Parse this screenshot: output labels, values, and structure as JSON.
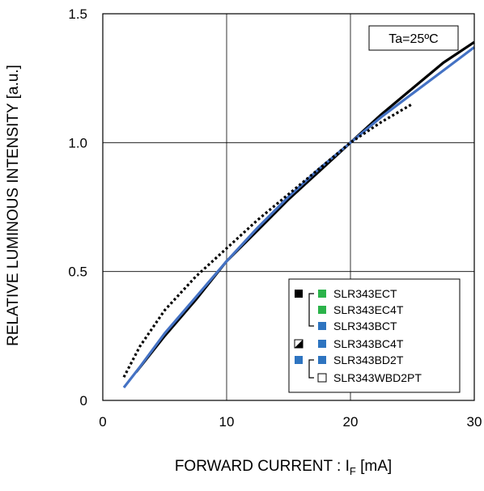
{
  "chart_data": {
    "type": "line",
    "xlabel": "FORWARD CURRENT : I",
    "xlabel_subscript": "F",
    "xlabel_unit": " [mA]",
    "ylabel": "RELATIVE LUMINOUS INTENSITY [a.u.]",
    "xlim": [
      0,
      30
    ],
    "ylim": [
      0,
      1.5
    ],
    "x_ticks": [
      0,
      10,
      20,
      30
    ],
    "y_ticks": [
      0,
      0.5,
      1.0,
      1.5
    ],
    "x_tick_labels": [
      "0",
      "10",
      "20",
      "30"
    ],
    "y_tick_labels": [
      "0",
      "0.5",
      "1.0",
      "1.5"
    ],
    "grid": true,
    "annotation": "Ta=25ºC",
    "legend_placement": "bottom-right",
    "legend": [
      {
        "label": "SLR343ECT",
        "marker_color": "#2bb34a",
        "group_marker": "black"
      },
      {
        "label": "SLR343EC4T",
        "marker_color": "#2bb34a",
        "group_marker": ""
      },
      {
        "label": "SLR343BCT",
        "marker_color": "#2e74c0",
        "group_marker": ""
      },
      {
        "label": "SLR343BC4T",
        "marker_color": "#2e74c0",
        "group_marker": "half"
      },
      {
        "label": "SLR343BD2T",
        "marker_color": "#2e74c0",
        "group_marker": "blue"
      },
      {
        "label": "SLR343WBD2PT",
        "marker_color": "#ffffff",
        "group_marker": ""
      }
    ],
    "series": [
      {
        "style": "solid",
        "color": "#000000",
        "x": [
          2.7,
          5,
          7.5,
          10,
          12.5,
          15,
          17.5,
          20,
          22.5,
          25,
          27.5,
          30
        ],
        "y": [
          0.11,
          0.25,
          0.39,
          0.54,
          0.66,
          0.78,
          0.89,
          1.0,
          1.11,
          1.21,
          1.31,
          1.39
        ]
      },
      {
        "style": "solid",
        "color": "#4472c4",
        "x": [
          1.7,
          3,
          5,
          7.5,
          10,
          12.5,
          15,
          17.5,
          20,
          22.5,
          25,
          27.5,
          30
        ],
        "y": [
          0.05,
          0.13,
          0.26,
          0.4,
          0.54,
          0.67,
          0.79,
          0.9,
          1.0,
          1.1,
          1.19,
          1.28,
          1.37
        ]
      },
      {
        "style": "dotted",
        "color": "#000000",
        "x": [
          1.7,
          3,
          5,
          7.5,
          10,
          12.5,
          15,
          17.5,
          20,
          22.5,
          25
        ],
        "y": [
          0.09,
          0.21,
          0.35,
          0.48,
          0.59,
          0.7,
          0.8,
          0.9,
          1.0,
          1.08,
          1.15
        ]
      }
    ]
  }
}
